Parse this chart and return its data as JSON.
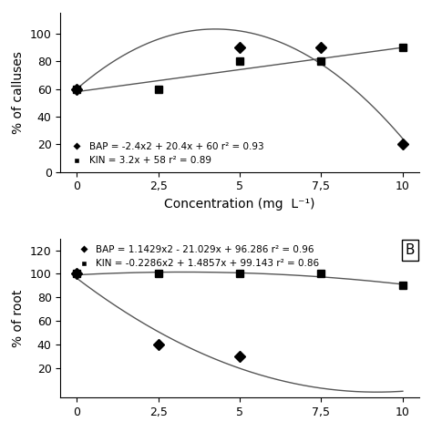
{
  "top": {
    "bap_points_x": [
      0,
      5,
      7.5,
      10
    ],
    "bap_points_y": [
      60,
      90,
      90,
      20
    ],
    "kin_points_x": [
      0,
      2.5,
      5,
      7.5,
      10
    ],
    "kin_points_y": [
      60,
      60,
      80,
      80,
      90
    ],
    "bap_eq": "BAP = -2.4x2 + 20.4x + 60 r² = 0.93",
    "kin_eq": "KIN = 3.2x + 58 r² = 0.89",
    "ylabel": "% of calluses",
    "xlabel": "Concentration (mg  L⁻¹)",
    "ylim": [
      0,
      115
    ],
    "yticks": [
      0,
      20,
      40,
      60,
      80,
      100
    ],
    "xticks": [
      0,
      2.5,
      5,
      7.5,
      10
    ],
    "xticklabels": [
      "0",
      "2,5",
      "5",
      "7,5",
      "10"
    ]
  },
  "bottom": {
    "bap_points_x": [
      0,
      2.5,
      5
    ],
    "bap_points_y": [
      100,
      40,
      30
    ],
    "kin_points_x": [
      0,
      2.5,
      5,
      7.5,
      10
    ],
    "kin_points_y": [
      100,
      100,
      100,
      100,
      90
    ],
    "bap_eq": "BAP = 1.1429x2 - 21.029x + 96.286 r² = 0.96",
    "kin_eq": "KIN = -0.2286x2 + 1.4857x + 99.143 r² = 0.86",
    "ylabel": "% of root",
    "ylim": [
      -5,
      130
    ],
    "yticks": [
      20,
      40,
      60,
      80,
      100,
      120
    ],
    "xticks": [
      0,
      2.5,
      5,
      7.5,
      10
    ],
    "xticklabels": [
      "0",
      "2,5",
      "5",
      "7,5",
      "10"
    ],
    "panel_label": "B"
  },
  "line_color": "#555555",
  "marker_size": 6,
  "font_size": 9,
  "label_font_size": 10
}
